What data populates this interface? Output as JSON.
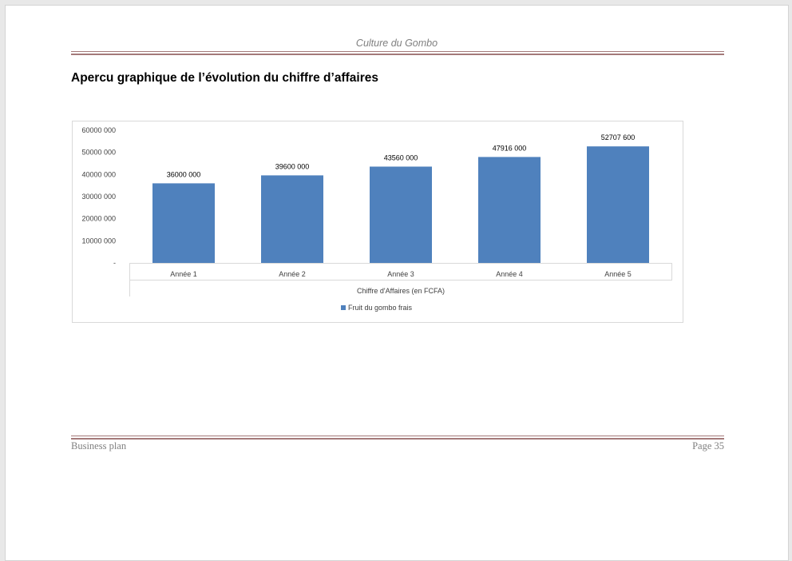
{
  "document": {
    "header_title": "Culture du Gombo",
    "heading": "Apercu graphique de l’évolution du chiffre d’affaires",
    "footer_left": "Business plan",
    "footer_page": "Page 35",
    "rule_color": "#a47a7a"
  },
  "chart_data": {
    "type": "bar",
    "categories": [
      "Année 1",
      "Année 2",
      "Année 3",
      "Année 4",
      "Année 5"
    ],
    "series": [
      {
        "name": "Fruit du gombo frais",
        "values": [
          36000000,
          39600000,
          43560000,
          47916000,
          52707600
        ],
        "labels": [
          "36000 000",
          "39600 000",
          "43560 000",
          "47916 000",
          "52707 600"
        ],
        "color": "#4f81bd"
      }
    ],
    "xlabel": "Chiffre d'Affaires (en FCFA)",
    "ylabel": "",
    "ylim": [
      0,
      60000000
    ],
    "yticks": [
      0,
      10000000,
      20000000,
      30000000,
      40000000,
      50000000,
      60000000
    ],
    "ytick_labels": [
      "-",
      "10000 000",
      "20000 000",
      "30000 000",
      "40000 000",
      "50000 000",
      "60000 000"
    ],
    "grid": false,
    "legend_position": "bottom"
  }
}
